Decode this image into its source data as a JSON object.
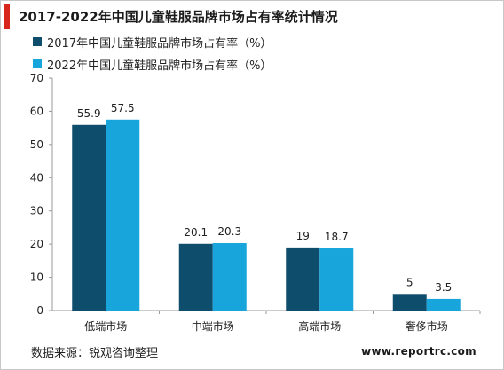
{
  "page": {
    "title": "2017-2022年中国儿童鞋服品牌市场占有率统计情况",
    "accent_color": "#d9261c",
    "source": "数据来源：锐观咨询整理",
    "website": "www.reportrc.com"
  },
  "chart_data": {
    "type": "bar",
    "title": "2017-2022年中国儿童鞋服品牌市场占有率统计情况",
    "categories": [
      "低端市场",
      "中端市场",
      "高端市场",
      "奢侈市场"
    ],
    "series": [
      {
        "name": "2017年中国儿童鞋服品牌市场占有率（%）",
        "color": "#0e4d6b",
        "values": [
          55.9,
          20.1,
          19,
          5
        ],
        "labels": [
          "55.9",
          "20.1",
          "19",
          "5"
        ]
      },
      {
        "name": "2022年中国儿童鞋服品牌市场占有率（%）",
        "color": "#17a5dc",
        "values": [
          57.5,
          20.3,
          18.7,
          3.5
        ],
        "labels": [
          "57.5",
          "20.3",
          "18.7",
          "3.5"
        ]
      }
    ],
    "ylim": [
      0,
      70
    ],
    "yticks": [
      "0",
      "10",
      "20",
      "30",
      "40",
      "50",
      "60",
      "70"
    ],
    "grid": false,
    "legend_position": "top-left"
  }
}
